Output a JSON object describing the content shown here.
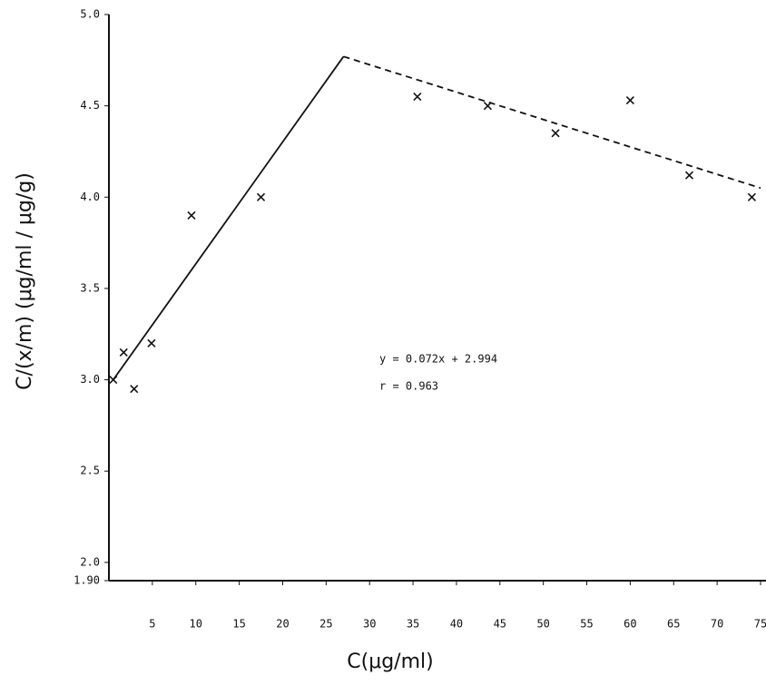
{
  "chart_data": {
    "type": "scatter",
    "x_label": "C(μg/ml)",
    "y_label": "C/(x/m) (μg/ml / μg/g)",
    "annotations": [
      "y = 0.072x + 2.994",
      "r = 0.963"
    ],
    "x": [
      0.5,
      1.7,
      2.9,
      4.9,
      9.5,
      17.5,
      35.5,
      43.6,
      51.4,
      60,
      66.8,
      74
    ],
    "values": [
      3.0,
      3.15,
      2.95,
      3.2,
      3.9,
      4.0,
      4.55,
      4.5,
      4.35,
      4.53,
      4.12,
      4.0
    ],
    "color": "#111111",
    "lines": [
      {
        "x": [
          0.5,
          27
        ],
        "values": [
          3.0,
          4.77
        ],
        "style": "solid"
      },
      {
        "x": [
          27,
          75
        ],
        "values": [
          4.77,
          4.05
        ],
        "style": "dashed"
      }
    ],
    "xlim": [
      0,
      75
    ],
    "ylim": [
      1.9,
      5.0
    ],
    "xticks": [
      5,
      10,
      15,
      20,
      25,
      30,
      35,
      40,
      45,
      50,
      55,
      60,
      65,
      70,
      75
    ],
    "yticks": [
      {
        "value": 1.9,
        "label": "1.90"
      },
      {
        "value": 2,
        "label": "2.0"
      },
      2.5,
      {
        "value": 3,
        "label": "3.0"
      },
      3.5,
      {
        "value": 4,
        "label": "4.0"
      },
      4.5,
      {
        "value": 5,
        "label": "5.0"
      }
    ]
  }
}
